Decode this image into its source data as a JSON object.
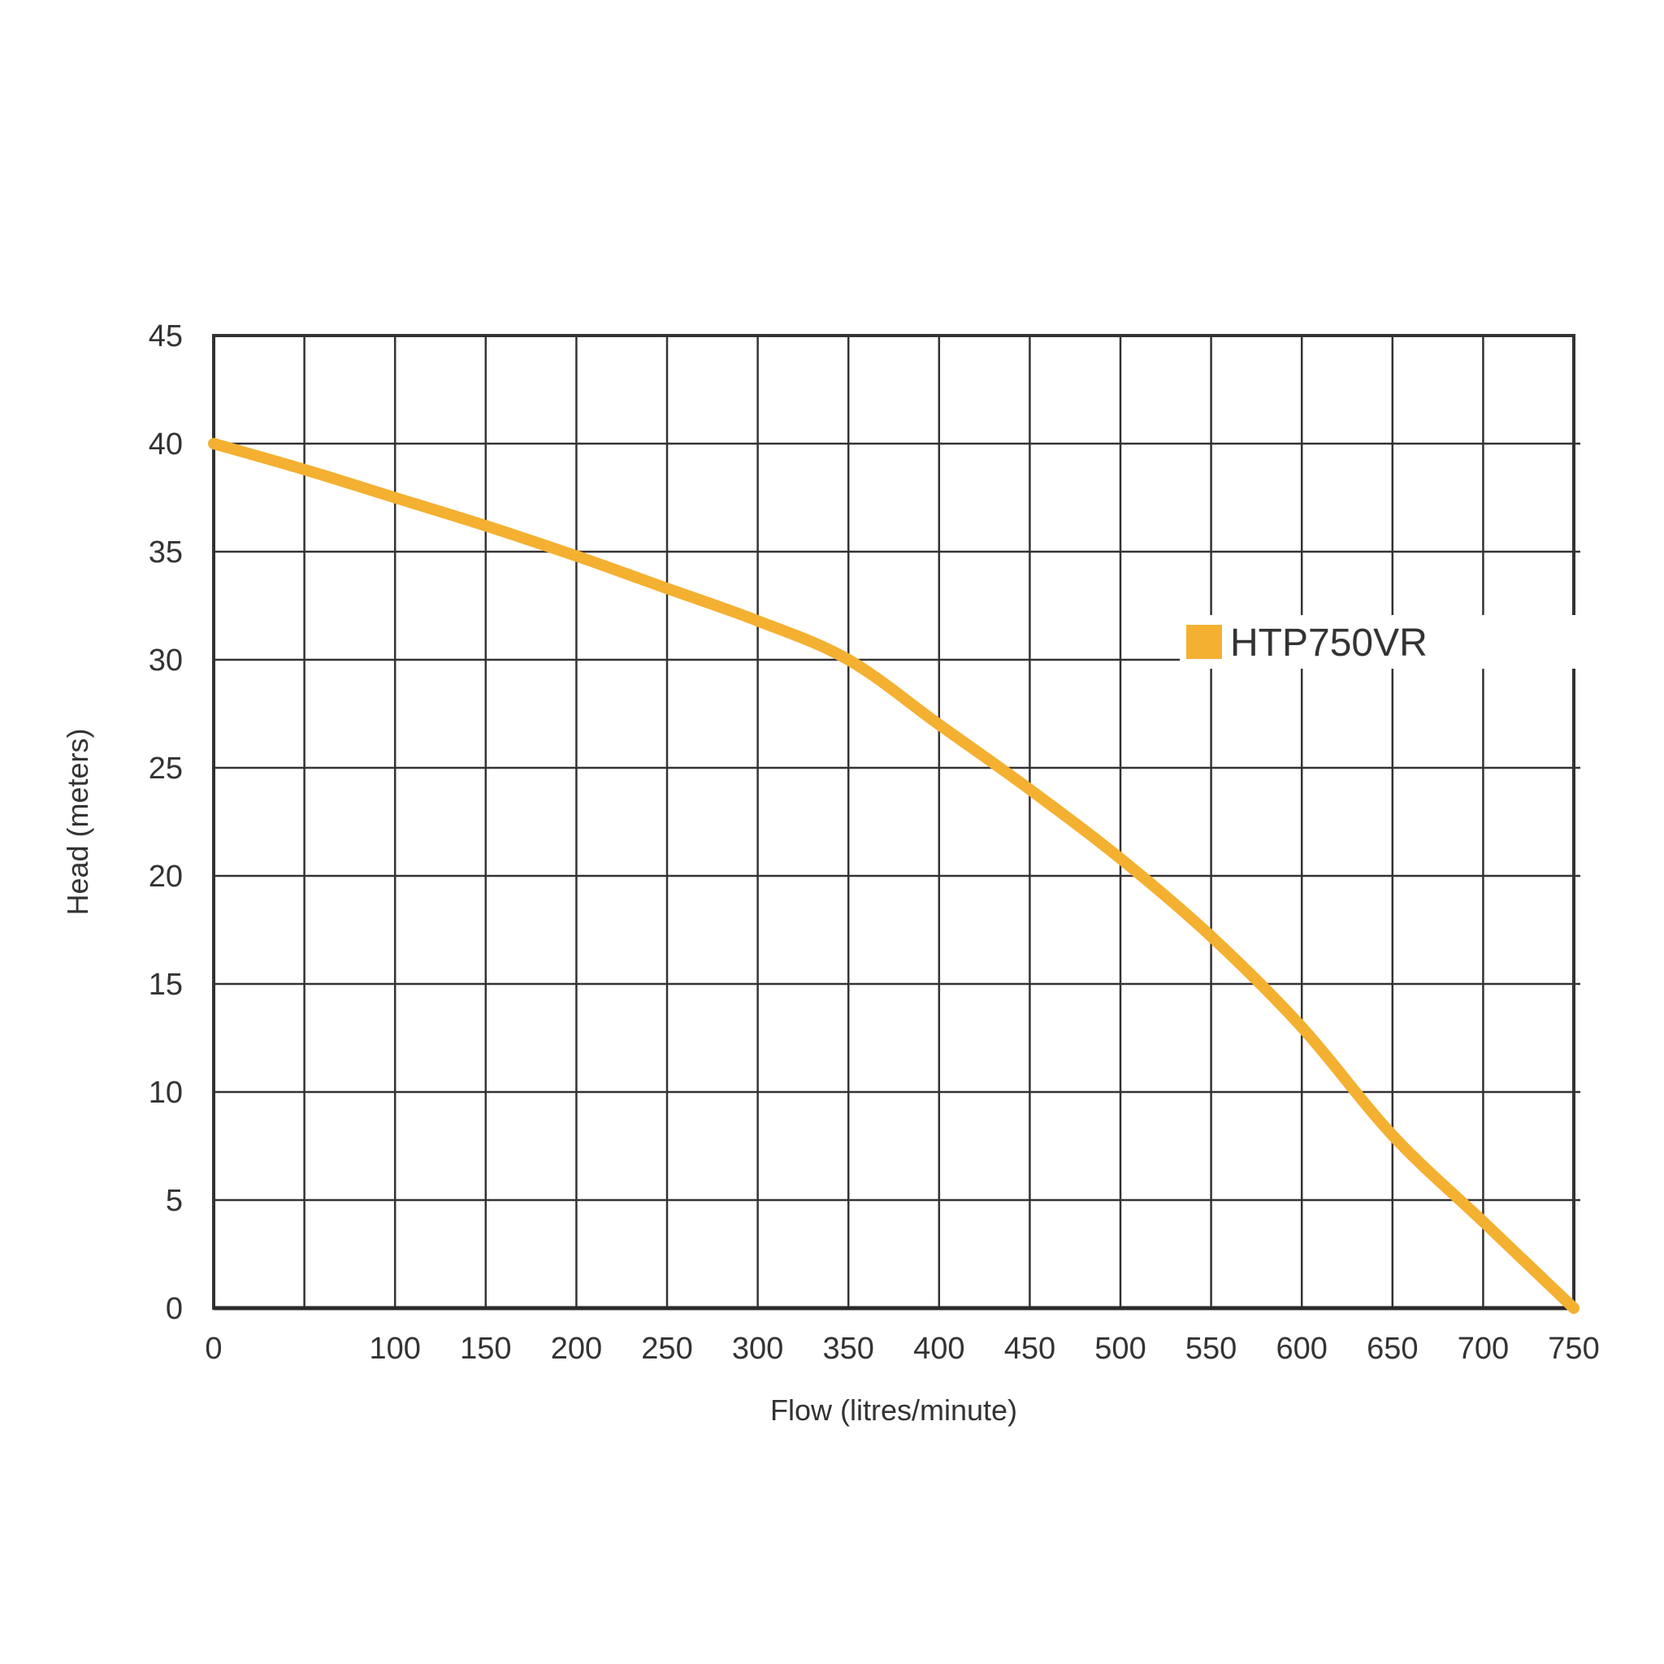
{
  "chart_data": {
    "type": "line",
    "xlabel": "Flow (litres/minute)",
    "ylabel": "Head (meters)",
    "xlim": [
      0,
      750
    ],
    "ylim": [
      0,
      45
    ],
    "x_ticks": [
      0,
      100,
      150,
      200,
      250,
      300,
      350,
      400,
      450,
      500,
      550,
      600,
      650,
      700,
      750
    ],
    "y_ticks": [
      0,
      5,
      10,
      15,
      20,
      25,
      30,
      35,
      40,
      45
    ],
    "grid": true,
    "legend_position": "right",
    "series": [
      {
        "name": "HTP750VR",
        "color": "#F4B030",
        "x": [
          0,
          50,
          100,
          150,
          200,
          250,
          300,
          350,
          400,
          450,
          500,
          550,
          600,
          650,
          700,
          750
        ],
        "y": [
          40,
          38.8,
          37.5,
          36.2,
          34.8,
          33.3,
          31.8,
          30,
          27,
          24,
          20.8,
          17.2,
          13,
          8,
          4,
          0
        ]
      }
    ]
  }
}
